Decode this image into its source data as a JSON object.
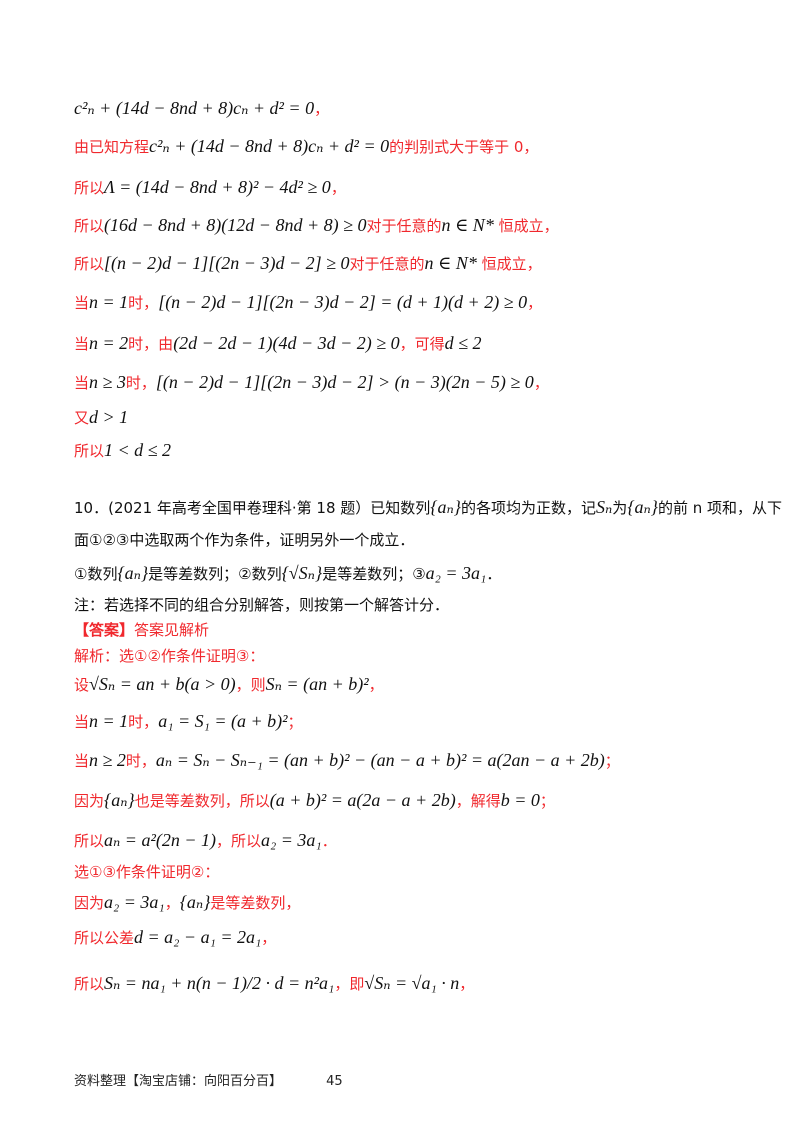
{
  "colors": {
    "answer_red": "#f0282d",
    "text_black": "#111111"
  },
  "lines": [
    [
      {
        "t": "c²ₙ + (14d − 8nd + 8)cₙ + d² = 0",
        "c": "m"
      },
      {
        "t": "，",
        "c": "r"
      }
    ],
    [
      {
        "t": "由已知方程",
        "c": "r"
      },
      {
        "t": "c²ₙ + (14d − 8nd + 8)cₙ + d² = 0",
        "c": "m"
      },
      {
        "t": "的判别式大于等于 0，",
        "c": "r"
      }
    ],
    [
      {
        "t": "所以",
        "c": "r"
      },
      {
        "t": "Λ = (14d − 8nd + 8)² − 4d² ≥ 0",
        "c": "m"
      },
      {
        "t": "，",
        "c": "r"
      }
    ],
    [
      {
        "t": "所以",
        "c": "r"
      },
      {
        "t": "(16d − 8nd + 8)(12d − 8nd + 8) ≥ 0",
        "c": "m"
      },
      {
        "t": "对于任意的",
        "c": "r"
      },
      {
        "t": "n ∈ N*",
        "c": "m"
      },
      {
        "t": " 恒成立，",
        "c": "r"
      }
    ],
    [
      {
        "t": "所以",
        "c": "r"
      },
      {
        "t": "[(n − 2)d − 1][(2n − 3)d − 2] ≥ 0",
        "c": "m"
      },
      {
        "t": "对于任意的",
        "c": "r"
      },
      {
        "t": "n ∈ N*",
        "c": "m"
      },
      {
        "t": " 恒成立，",
        "c": "r"
      }
    ],
    [
      {
        "t": "当",
        "c": "r"
      },
      {
        "t": "n = 1",
        "c": "m"
      },
      {
        "t": "时，",
        "c": "r"
      },
      {
        "t": "[(n − 2)d − 1][(2n − 3)d − 2] = (d + 1)(d + 2) ≥ 0",
        "c": "m"
      },
      {
        "t": "，",
        "c": "r"
      }
    ],
    [
      {
        "t": "当",
        "c": "r"
      },
      {
        "t": "n = 2",
        "c": "m"
      },
      {
        "t": "时，由",
        "c": "r"
      },
      {
        "t": "(2d − 2d − 1)(4d − 3d − 2) ≥ 0",
        "c": "m"
      },
      {
        "t": "，可得",
        "c": "r"
      },
      {
        "t": "d ≤ 2",
        "c": "m"
      }
    ],
    [
      {
        "t": "当",
        "c": "r"
      },
      {
        "t": "n ≥ 3",
        "c": "m"
      },
      {
        "t": "时，",
        "c": "r"
      },
      {
        "t": "[(n − 2)d − 1][(2n − 3)d − 2] > (n − 3)(2n − 5) ≥ 0",
        "c": "m"
      },
      {
        "t": "，",
        "c": "r"
      }
    ],
    [
      {
        "t": "又",
        "c": "r"
      },
      {
        "t": "d > 1",
        "c": "m"
      }
    ],
    [
      {
        "t": "所以",
        "c": "r"
      },
      {
        "t": "1 < d ≤ 2",
        "c": "m"
      }
    ],
    [
      {
        "t": "10．(2021 年高考全国甲卷理科·第 18 题）已知数列",
        "c": "k"
      },
      {
        "t": "{aₙ}",
        "c": "m"
      },
      {
        "t": "的各项均为正数，记",
        "c": "k"
      },
      {
        "t": "Sₙ",
        "c": "m"
      },
      {
        "t": "为",
        "c": "k"
      },
      {
        "t": "{aₙ}",
        "c": "m"
      },
      {
        "t": "的前 n 项和，从下",
        "c": "k"
      }
    ],
    [
      {
        "t": "面①②③中选取两个作为条件，证明另外一个成立．",
        "c": "k"
      }
    ],
    [
      {
        "t": "①数列",
        "c": "k"
      },
      {
        "t": "{aₙ}",
        "c": "m"
      },
      {
        "t": "是等差数列；②数列",
        "c": "k"
      },
      {
        "t": "{√Sₙ}",
        "c": "m"
      },
      {
        "t": "是等差数列；③",
        "c": "k"
      },
      {
        "t": "a₂ = 3a₁",
        "c": "m"
      },
      {
        "t": "．",
        "c": "k"
      }
    ],
    [
      {
        "t": "注：若选择不同的组合分别解答，则按第一个解答计分．",
        "c": "k"
      }
    ],
    [
      {
        "t": "【答案】",
        "c": "r bold"
      },
      {
        "t": "答案见解析",
        "c": "r"
      }
    ],
    [
      {
        "t": "解析：选①②作条件证明③：",
        "c": "r"
      }
    ],
    [
      {
        "t": "设",
        "c": "r"
      },
      {
        "t": "√Sₙ = an + b(a > 0)",
        "c": "m"
      },
      {
        "t": "，则",
        "c": "r"
      },
      {
        "t": "Sₙ = (an + b)²",
        "c": "m"
      },
      {
        "t": "，",
        "c": "r"
      }
    ],
    [
      {
        "t": "当",
        "c": "r"
      },
      {
        "t": "n = 1",
        "c": "m"
      },
      {
        "t": "时，",
        "c": "r"
      },
      {
        "t": "a₁ = S₁ = (a + b)²",
        "c": "m"
      },
      {
        "t": "；",
        "c": "r"
      }
    ],
    [
      {
        "t": "当",
        "c": "r"
      },
      {
        "t": "n ≥ 2",
        "c": "m"
      },
      {
        "t": "时，",
        "c": "r"
      },
      {
        "t": "aₙ = Sₙ − Sₙ₋₁ = (an + b)² − (an − a + b)² = a(2an − a + 2b)",
        "c": "m"
      },
      {
        "t": "；",
        "c": "r"
      }
    ],
    [
      {
        "t": "因为",
        "c": "r"
      },
      {
        "t": "{aₙ}",
        "c": "m"
      },
      {
        "t": "也是等差数列，所以",
        "c": "r"
      },
      {
        "t": "(a + b)² = a(2a − a + 2b)",
        "c": "m"
      },
      {
        "t": "，解得",
        "c": "r"
      },
      {
        "t": "b = 0",
        "c": "m"
      },
      {
        "t": "；",
        "c": "r"
      }
    ],
    [
      {
        "t": "所以",
        "c": "r"
      },
      {
        "t": "aₙ = a²(2n − 1)",
        "c": "m"
      },
      {
        "t": "，所以",
        "c": "r"
      },
      {
        "t": "a₂ = 3a₁",
        "c": "m"
      },
      {
        "t": "．",
        "c": "r"
      }
    ],
    [
      {
        "t": "选①③作条件证明②：",
        "c": "r"
      }
    ],
    [
      {
        "t": "因为",
        "c": "r"
      },
      {
        "t": "a₂ = 3a₁",
        "c": "m"
      },
      {
        "t": "，",
        "c": "r"
      },
      {
        "t": "{aₙ}",
        "c": "m"
      },
      {
        "t": "是等差数列，",
        "c": "r"
      }
    ],
    [
      {
        "t": "所以公差",
        "c": "r"
      },
      {
        "t": "d = a₂ − a₁ = 2a₁",
        "c": "m"
      },
      {
        "t": "，",
        "c": "r"
      }
    ],
    [
      {
        "t": "所以",
        "c": "r"
      },
      {
        "t": "Sₙ = na₁ + n(n − 1)/2 · d = n²a₁",
        "c": "m"
      },
      {
        "t": "，即",
        "c": "r"
      },
      {
        "t": "√Sₙ = √a₁ · n",
        "c": "m"
      },
      {
        "t": "，",
        "c": "r"
      }
    ]
  ],
  "footer": {
    "source": "资料整理【淘宝店铺：向阳百分百】",
    "page_number": "45"
  }
}
